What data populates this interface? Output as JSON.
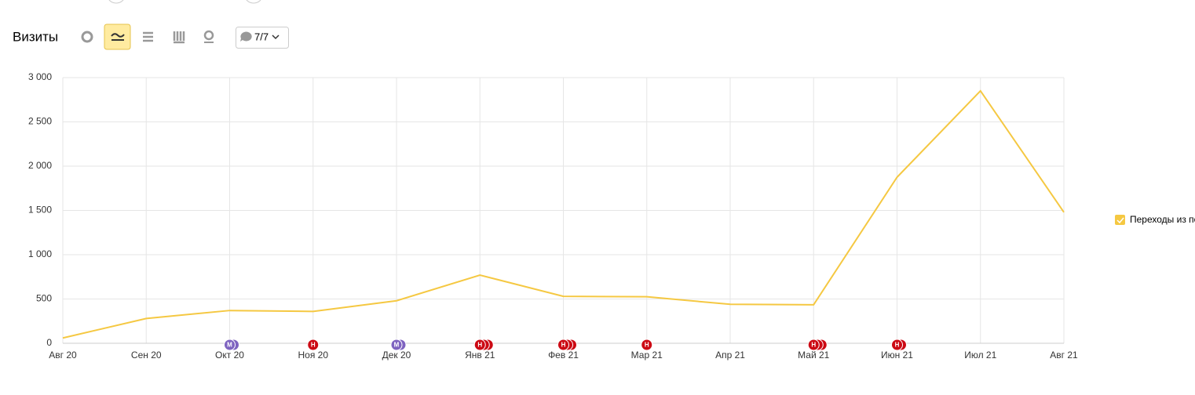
{
  "toolbar": {
    "title": "Визиты",
    "comments": "7/7"
  },
  "chart_data": {
    "type": "line",
    "categories": [
      "Авг 20",
      "Сен 20",
      "Окт 20",
      "Ноя 20",
      "Дек 20",
      "Янв 21",
      "Фев 21",
      "Мар 21",
      "Апр 21",
      "Май 21",
      "Июн 21",
      "Июл 21",
      "Авг 21"
    ],
    "series": [
      {
        "name": "Переходы из поисковых систем",
        "color": "#f5c842",
        "values": [
          60,
          280,
          370,
          360,
          480,
          770,
          530,
          525,
          440,
          435,
          1875,
          2850,
          1480
        ]
      }
    ],
    "ylim": [
      0,
      3000
    ],
    "yticks": [
      0,
      500,
      {
        "value": 1000,
        "label": "1 000"
      },
      {
        "value": 1500,
        "label": "1 500"
      },
      {
        "value": 2000,
        "label": "2 000"
      },
      {
        "value": 2500,
        "label": "2 500"
      },
      {
        "value": 3000,
        "label": "3 000"
      }
    ],
    "grid": true,
    "annotations": [
      {
        "x": "Окт 20",
        "label": "М",
        "count": 2,
        "color": "#7e63c0"
      },
      {
        "x": "Ноя 20",
        "label": "Н",
        "count": 1,
        "color": "#cc0a14"
      },
      {
        "x": "Дек 20",
        "label": "М",
        "count": 2,
        "color": "#7e63c0"
      },
      {
        "x": "Янв 21",
        "label": "Н",
        "count": 3,
        "color": "#cc0a14"
      },
      {
        "x": "Фев 21",
        "label": "Н",
        "count": 3,
        "color": "#cc0a14"
      },
      {
        "x": "Мар 21",
        "label": "Н",
        "count": 1,
        "color": "#cc0a14"
      },
      {
        "x": "Май 21",
        "label": "Н",
        "count": 3,
        "color": "#cc0a14"
      },
      {
        "x": "Июн 21",
        "label": "Н",
        "count": 2,
        "color": "#cc0a14"
      }
    ]
  }
}
